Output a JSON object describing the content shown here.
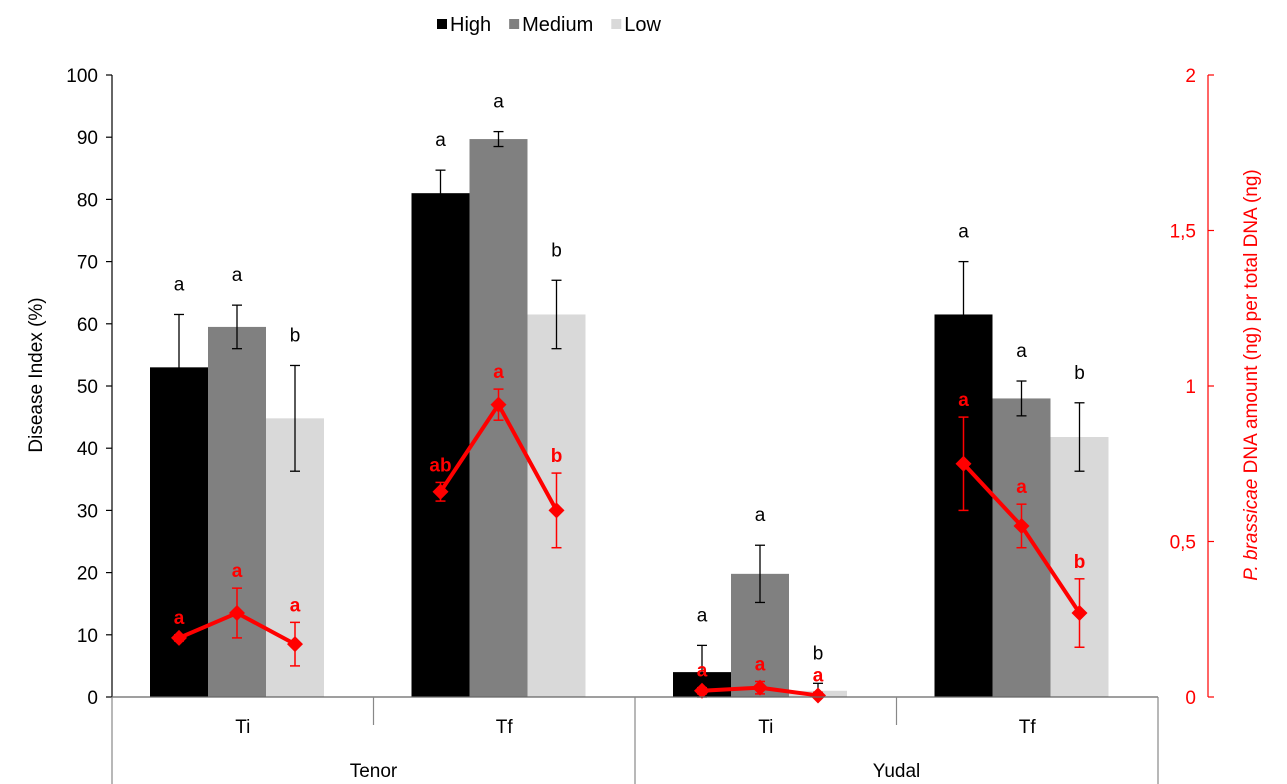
{
  "chart_data": {
    "type": "bar",
    "legend": {
      "position": "top",
      "entries": [
        {
          "name": "High",
          "color": "#000000"
        },
        {
          "name": "Medium",
          "color": "#808080"
        },
        {
          "name": "Low",
          "color": "#d9d9d9"
        }
      ]
    },
    "groups": [
      "Tenor",
      "Yudal"
    ],
    "categories": [
      {
        "label": "Ti",
        "group": "Tenor"
      },
      {
        "label": "Tf",
        "group": "Tenor"
      },
      {
        "label": "Ti",
        "group": "Yudal"
      },
      {
        "label": "Tf",
        "group": "Yudal"
      }
    ],
    "ylabel": "Disease Index (%)",
    "ylim": [
      0,
      100
    ],
    "yticks": [
      "0",
      "10",
      "20",
      "30",
      "40",
      "50",
      "60",
      "70",
      "80",
      "90",
      "100"
    ],
    "y2label_italic": "P. brassicae",
    "y2label_rest": " DNA amount (ng) per total DNA (ng)",
    "y2lim": [
      0,
      2
    ],
    "y2ticks": [
      "0",
      "0,5",
      "1",
      "1,5",
      "2"
    ],
    "y2color": "#ff0000",
    "grid": false,
    "series": [
      {
        "name": "High",
        "color": "#000000",
        "values": [
          53,
          81,
          4,
          61.5
        ],
        "errors": [
          8.5,
          3.7,
          4.3,
          8.5
        ],
        "letters": [
          "a",
          "a",
          "a",
          "a"
        ]
      },
      {
        "name": "Medium",
        "color": "#808080",
        "values": [
          59.5,
          89.7,
          19.8,
          48
        ],
        "errors": [
          3.5,
          1.2,
          4.6,
          2.8
        ],
        "letters": [
          "a",
          "a",
          "a",
          "a"
        ]
      },
      {
        "name": "Low",
        "color": "#d9d9d9",
        "values": [
          44.8,
          61.5,
          1,
          41.8
        ],
        "errors": [
          8.5,
          5.5,
          1.2,
          5.5
        ],
        "letters": [
          "b",
          "b",
          "b",
          "b"
        ]
      }
    ],
    "line_series": [
      {
        "axis": "right",
        "color": "#ff0000",
        "segments": [
          {
            "category": 0,
            "values": [
              0.19,
              0.27,
              0.17
            ],
            "errors": [
              0.01,
              0.08,
              0.07
            ],
            "letters": [
              "a",
              "a",
              "a"
            ]
          },
          {
            "category": 1,
            "values": [
              0.66,
              0.94,
              0.6
            ],
            "errors": [
              0.03,
              0.05,
              0.12
            ],
            "letters": [
              "ab",
              "a",
              "b"
            ]
          },
          {
            "category": 2,
            "values": [
              0.02,
              0.03,
              0.005
            ],
            "errors": [
              0.01,
              0.02,
              0.01
            ],
            "letters": [
              "a",
              "a",
              "a"
            ]
          },
          {
            "category": 3,
            "values": [
              0.75,
              0.55,
              0.27
            ],
            "errors": [
              0.15,
              0.07,
              0.11
            ],
            "letters": [
              "a",
              "a",
              "b"
            ]
          }
        ]
      }
    ]
  }
}
